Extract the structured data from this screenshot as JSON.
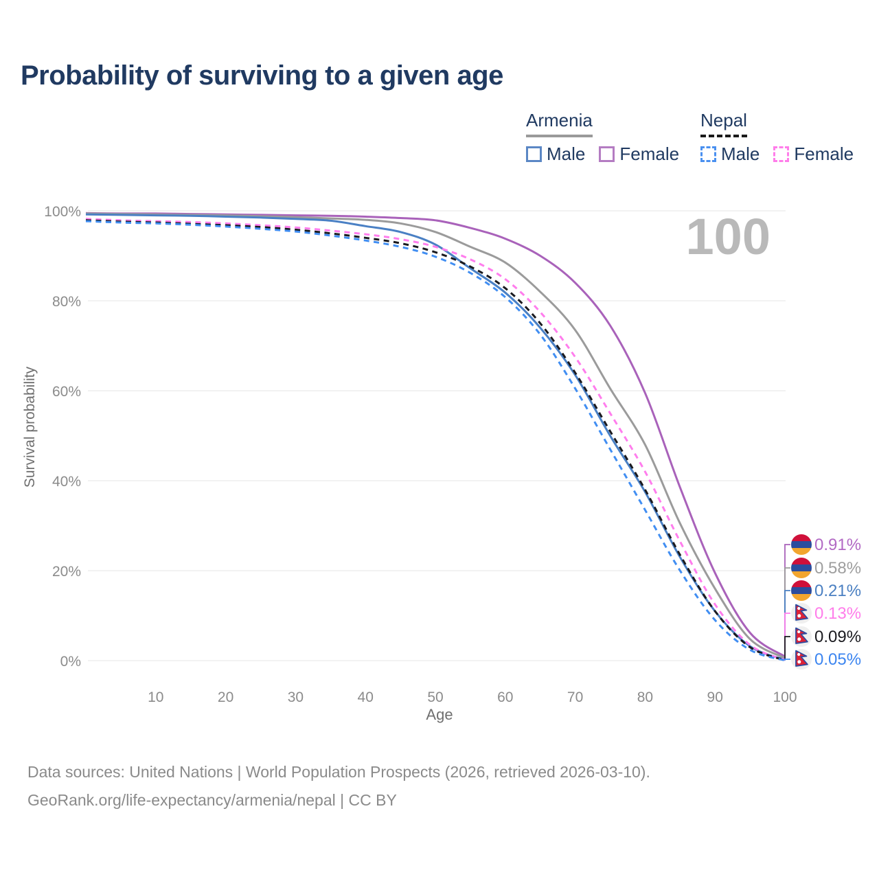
{
  "header": {
    "title": "Probability of surviving to a given age"
  },
  "legend": {
    "groups": [
      {
        "country": "Armenia",
        "underline_style": "solid",
        "underline_color": "#9a9a9a",
        "items": [
          {
            "label": "Male",
            "color": "#5b87c5",
            "dashed": false
          },
          {
            "label": "Female",
            "color": "#b47cc2",
            "dashed": false
          }
        ]
      },
      {
        "country": "Nepal",
        "underline_style": "dashed",
        "underline_color": "#1a1a1a",
        "items": [
          {
            "label": "Male",
            "color": "#4a90f0",
            "dashed": true
          },
          {
            "label": "Female",
            "color": "#ff7dea",
            "dashed": true
          }
        ]
      }
    ]
  },
  "chart_data": {
    "type": "line",
    "title": "Probability of surviving to a given age",
    "xlabel": "Age",
    "ylabel": "Survival probability",
    "xlim": [
      0,
      100
    ],
    "ylim": [
      0,
      100
    ],
    "grid": "horizontal",
    "legend_position": "top-right",
    "watermark": "100",
    "x_ticks": [
      10,
      20,
      30,
      40,
      50,
      60,
      70,
      80,
      90,
      100
    ],
    "y_tick_values": [
      0,
      20,
      40,
      60,
      80,
      100
    ],
    "y_tick_labels": [
      "0%",
      "20%",
      "40%",
      "60%",
      "80%",
      "100%"
    ],
    "ages": [
      0,
      5,
      10,
      15,
      20,
      25,
      30,
      35,
      40,
      45,
      50,
      55,
      60,
      65,
      70,
      75,
      80,
      85,
      90,
      95,
      100
    ],
    "series": [
      {
        "name": "Armenia Female",
        "country": "Armenia",
        "sex": "Female",
        "color": "#a962ba",
        "dashed": false,
        "flag": "armenia",
        "end_label": "0.91%",
        "end_label_color": "#b269c4",
        "values": [
          99.5,
          99.4,
          99.4,
          99.3,
          99.2,
          99.1,
          99.0,
          98.9,
          98.7,
          98.4,
          97.9,
          96.2,
          93.8,
          90.0,
          84.0,
          74.5,
          59.5,
          38.5,
          19.5,
          6.2,
          0.91
        ]
      },
      {
        "name": "Armenia (both sexes)",
        "country": "Armenia",
        "sex": "Both",
        "color": "#9b9b9b",
        "dashed": false,
        "flag": "armenia",
        "end_label": "0.58%",
        "end_label_color": "#9e9e9e",
        "values": [
          99.4,
          99.3,
          99.2,
          99.1,
          99.0,
          98.8,
          98.6,
          98.3,
          98.0,
          97.2,
          95.3,
          92.0,
          88.5,
          82.0,
          73.5,
          60.5,
          48.0,
          30.5,
          16.0,
          4.8,
          0.58
        ]
      },
      {
        "name": "Armenia Male",
        "country": "Armenia",
        "sex": "Male",
        "color": "#4a80c4",
        "dashed": false,
        "flag": "armenia",
        "end_label": "0.21%",
        "end_label_color": "#4a7fc1",
        "values": [
          99.2,
          99.1,
          99.0,
          98.9,
          98.7,
          98.5,
          98.2,
          97.8,
          96.6,
          95.3,
          92.5,
          87.2,
          81.8,
          74.0,
          63.5,
          50.0,
          37.5,
          23.0,
          11.0,
          3.2,
          0.21
        ]
      },
      {
        "name": "Nepal Female",
        "country": "Nepal",
        "sex": "Female",
        "color": "#ff7ded",
        "dashed": true,
        "flag": "nepal",
        "end_label": "0.13%",
        "end_label_color": "#ff7dea",
        "values": [
          98.2,
          97.9,
          97.7,
          97.5,
          97.2,
          96.8,
          96.3,
          95.6,
          94.8,
          93.7,
          92.0,
          89.2,
          84.8,
          77.5,
          67.5,
          55.0,
          42.0,
          26.5,
          12.5,
          3.5,
          0.13
        ]
      },
      {
        "name": "Nepal (both sexes)",
        "country": "Nepal",
        "sex": "Both",
        "color": "#1a1a1f",
        "dashed": true,
        "flag": "nepal",
        "end_label": "0.09%",
        "end_label_color": "#1a1a1f",
        "values": [
          97.9,
          97.6,
          97.4,
          97.1,
          96.8,
          96.4,
          95.8,
          95.0,
          94.0,
          92.8,
          90.8,
          87.6,
          82.8,
          75.0,
          64.0,
          51.0,
          38.0,
          23.5,
          11.0,
          3.0,
          0.09
        ]
      },
      {
        "name": "Nepal Male",
        "country": "Nepal",
        "sex": "Male",
        "color": "#418ef2",
        "dashed": true,
        "flag": "nepal",
        "end_label": "0.05%",
        "end_label_color": "#3c85f0",
        "values": [
          97.7,
          97.4,
          97.2,
          96.9,
          96.5,
          96.0,
          95.4,
          94.5,
          93.4,
          92.0,
          89.8,
          86.2,
          80.8,
          72.5,
          60.5,
          47.0,
          33.5,
          20.0,
          9.0,
          2.4,
          0.05
        ]
      }
    ],
    "flag_colors": {
      "armenia": [
        "#d0103a",
        "#2b4d9e",
        "#f2a52e"
      ],
      "nepal": {
        "field": "#dc2236",
        "border": "#2b4aa0",
        "symbols": "#ffffff",
        "bg": "#efefef"
      }
    }
  },
  "footer": {
    "line1": "Data sources: United Nations | World Population Prospects (2026, retrieved 2026-03-10).",
    "line2": "GeoRank.org/life-expectancy/armenia/nepal | CC BY"
  }
}
